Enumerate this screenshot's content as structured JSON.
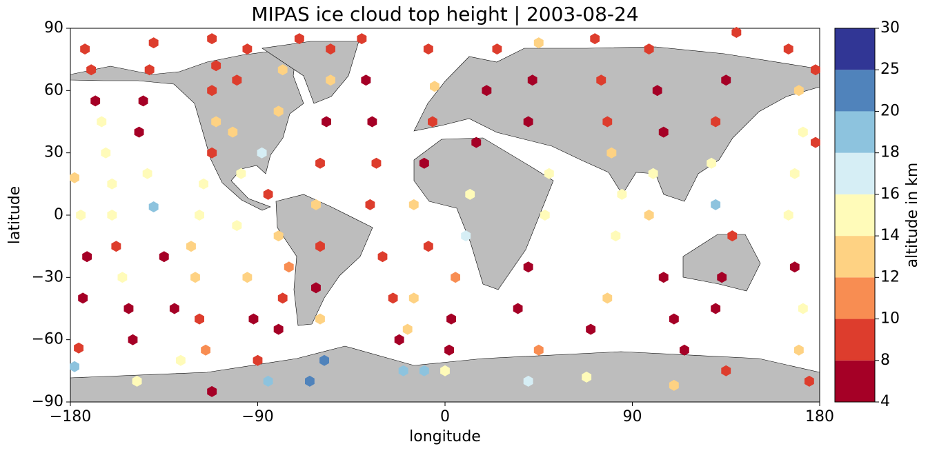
{
  "chart_data": {
    "type": "scatter",
    "title": "MIPAS ice cloud top height | 2003-08-24",
    "xlabel": "longitude",
    "ylabel": "latitude",
    "xlim": [
      -180,
      180
    ],
    "ylim": [
      -90,
      90
    ],
    "xticks": [
      {
        "value": -180,
        "label": "−180"
      },
      {
        "value": -90,
        "label": "−90"
      },
      0,
      90,
      180
    ],
    "yticks": [
      90,
      60,
      30,
      0,
      {
        "value": -30,
        "label": "−30"
      },
      {
        "value": -60,
        "label": "−60"
      },
      {
        "value": -90,
        "label": "−90"
      }
    ],
    "colorbar": {
      "label": "altitude in km",
      "boundaries": [
        4,
        8,
        10,
        12,
        14,
        16,
        18,
        20,
        25,
        30
      ],
      "colors": [
        "#a50026",
        "#dd3d2d",
        "#f88d52",
        "#fed283",
        "#fffbb9",
        "#d6eef5",
        "#8dc3de",
        "#5083bb",
        "#313695"
      ]
    },
    "x": [
      -173,
      -170,
      -168,
      -165,
      -163,
      -160,
      -160,
      -158,
      -155,
      -152,
      -150,
      -148,
      -178,
      -175,
      -172,
      -174,
      -176,
      -178,
      -140,
      -142,
      -145,
      -147,
      -143,
      -140,
      -135,
      -130,
      -127,
      -112,
      -110,
      -112,
      -110,
      -112,
      -116,
      -118,
      -122,
      -120,
      -118,
      -115,
      -112,
      -95,
      -100,
      -102,
      -98,
      -100,
      -95,
      -92,
      -90,
      -85,
      -80,
      -78,
      -75,
      -80,
      -85,
      -88,
      -80,
      -78,
      -70,
      -55,
      -55,
      -57,
      -60,
      -62,
      -60,
      -62,
      -60,
      -58,
      -65,
      -40,
      -38,
      -35,
      -33,
      -36,
      -30,
      -25,
      -22,
      -20,
      -8,
      -5,
      -6,
      -10,
      -15,
      -8,
      -15,
      -18,
      -10,
      25,
      20,
      15,
      12,
      10,
      5,
      3,
      2,
      0,
      45,
      42,
      40,
      50,
      48,
      40,
      35,
      45,
      40,
      72,
      75,
      78,
      80,
      85,
      82,
      78,
      70,
      68,
      98,
      102,
      105,
      100,
      98,
      105,
      110,
      115,
      110,
      140,
      135,
      130,
      128,
      130,
      138,
      133,
      130,
      135,
      165,
      170,
      172,
      168,
      165,
      168,
      172,
      170,
      175,
      178,
      178
    ],
    "y": [
      80,
      70,
      55,
      45,
      30,
      15,
      0,
      -15,
      -30,
      -45,
      -60,
      -80,
      18,
      0,
      -20,
      -40,
      -64,
      -73,
      83,
      70,
      55,
      40,
      20,
      4,
      -20,
      -45,
      -70,
      85,
      72,
      60,
      45,
      30,
      15,
      0,
      -15,
      -30,
      -50,
      -65,
      -85,
      80,
      65,
      40,
      20,
      -5,
      -30,
      -50,
      -70,
      -80,
      -55,
      -40,
      -25,
      -10,
      10,
      30,
      50,
      70,
      85,
      80,
      65,
      45,
      25,
      5,
      -15,
      -35,
      -50,
      -70,
      -80,
      85,
      65,
      45,
      25,
      5,
      -20,
      -40,
      -60,
      -75,
      80,
      62,
      45,
      25,
      5,
      -15,
      -40,
      -55,
      -75,
      80,
      60,
      35,
      10,
      -10,
      -30,
      -50,
      -65,
      -75,
      83,
      65,
      45,
      20,
      0,
      -25,
      -45,
      -65,
      -80,
      85,
      65,
      45,
      30,
      10,
      -10,
      -40,
      -55,
      -78,
      80,
      60,
      40,
      20,
      0,
      -30,
      -50,
      -65,
      -82,
      88,
      65,
      45,
      25,
      5,
      -10,
      -30,
      -45,
      -75,
      80,
      60,
      40,
      20,
      0,
      -25,
      -45,
      -65,
      -80,
      70,
      35
    ],
    "values": [
      8,
      8,
      6,
      14,
      14,
      15,
      15,
      8,
      14,
      6,
      6,
      15,
      13,
      15,
      6,
      6,
      9,
      19,
      9,
      8,
      6,
      6,
      15,
      19,
      6,
      6,
      15,
      9,
      8,
      9,
      13,
      8,
      15,
      15,
      13,
      13,
      8,
      10,
      6,
      9,
      9,
      13,
      15,
      14,
      13,
      6,
      9,
      19,
      6,
      8,
      10,
      12,
      8,
      16,
      12,
      13,
      9,
      9,
      13,
      6,
      8,
      13,
      9,
      6,
      13,
      20,
      23,
      8,
      6,
      6,
      8,
      8,
      8,
      8,
      6,
      19,
      9,
      13,
      8,
      6,
      12,
      9,
      12,
      12,
      19,
      8,
      6,
      6,
      15,
      16,
      10,
      6,
      6,
      15,
      13,
      6,
      6,
      15,
      14,
      6,
      6,
      10,
      17,
      9,
      9,
      8,
      13,
      14,
      15,
      13,
      6,
      15,
      8,
      6,
      6,
      15,
      13,
      6,
      6,
      6,
      13,
      9,
      6,
      9,
      14,
      18,
      8,
      6,
      6,
      9,
      9,
      13,
      15,
      14,
      15,
      6,
      14,
      12,
      8,
      8,
      9
    ]
  }
}
